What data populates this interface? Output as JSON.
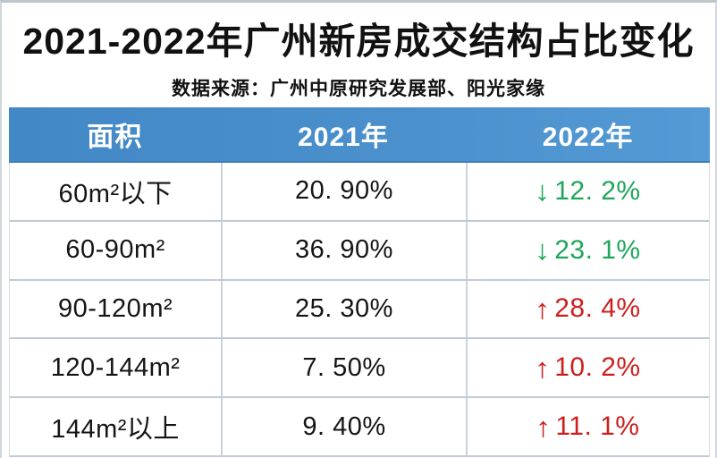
{
  "chart_data": {
    "type": "table",
    "title": "2021-2022年广州新房成交结构占比变化",
    "subtitle": "数据来源：广州中原研究发展部、阳光家缘",
    "columns": [
      "面积",
      "2021年",
      "2022年"
    ],
    "rows": [
      {
        "area": "60m²以下",
        "y2021": "20. 90%",
        "arrow": "↓",
        "direction": "down",
        "y2022": "12. 2%"
      },
      {
        "area": "60-90m²",
        "y2021": "36. 90%",
        "arrow": "↓",
        "direction": "down",
        "y2022": "23. 1%"
      },
      {
        "area": "90-120m²",
        "y2021": "25. 30%",
        "arrow": "↑",
        "direction": "up",
        "y2022": "28. 4%"
      },
      {
        "area": "120-144m²",
        "y2021": "7. 50%",
        "arrow": "↑",
        "direction": "up",
        "y2022": "10. 2%"
      },
      {
        "area": "144m²以上",
        "y2021": "9. 40%",
        "arrow": "↑",
        "direction": "up",
        "y2022": "11. 1%"
      }
    ],
    "layout": {
      "header_style": "blue band, white bold text",
      "grid": "light gray separators",
      "trend_colors": {
        "down": "green",
        "up": "red"
      }
    }
  },
  "colors": {
    "header_bg": "#4a90cc",
    "down_green": "#1fa65c",
    "up_red": "#cf1e1e",
    "text": "#111111",
    "grid_line": "#c2c9d5"
  }
}
